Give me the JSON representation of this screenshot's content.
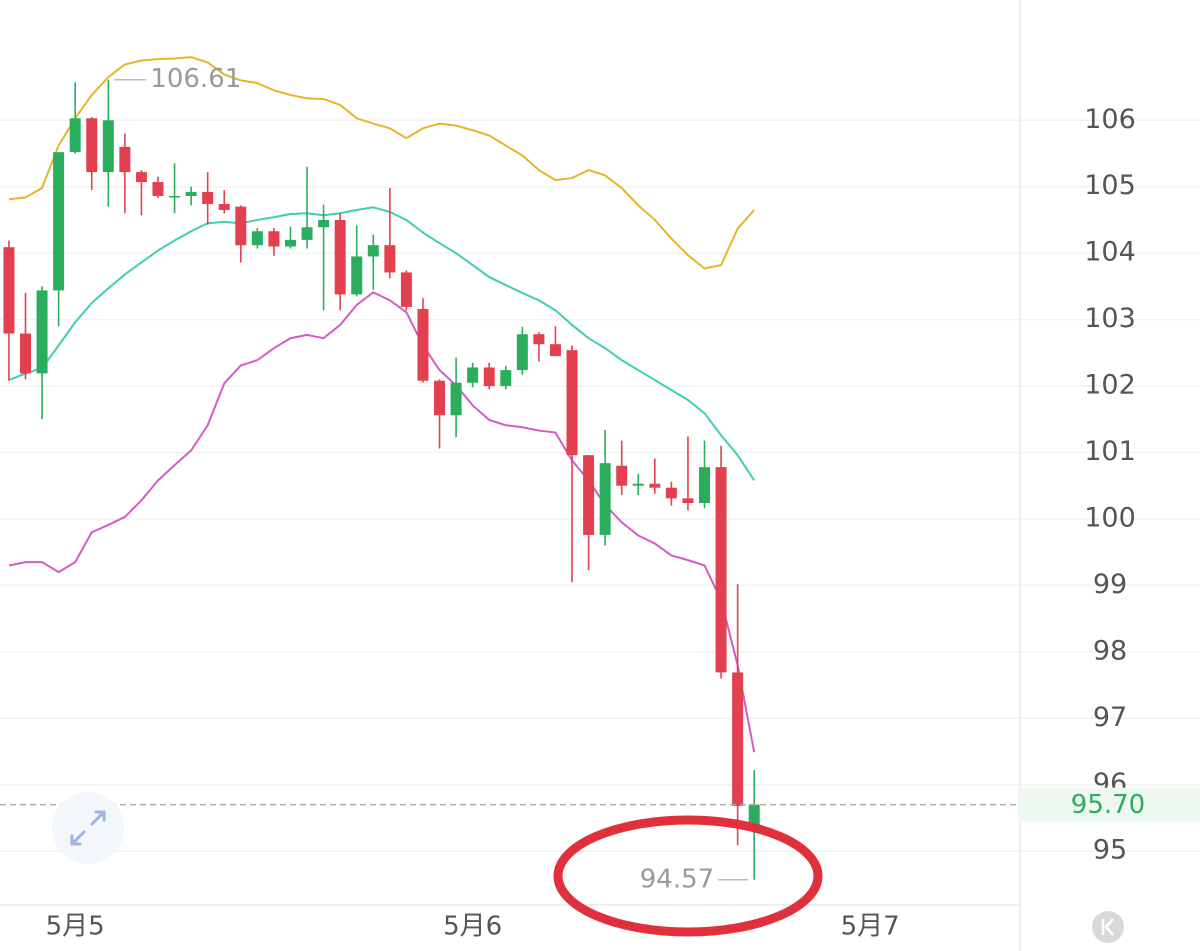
{
  "chart_data": {
    "type": "candlestick",
    "x": [
      0,
      1,
      2,
      3,
      4,
      5,
      6,
      7,
      8,
      9,
      10,
      11,
      12,
      13,
      14,
      15,
      16,
      17,
      18,
      19,
      20,
      21,
      22,
      23,
      24,
      25,
      26,
      27,
      28,
      29,
      30,
      31,
      32,
      33,
      34,
      35,
      36,
      37,
      38,
      39,
      40,
      41,
      42,
      43,
      44,
      45
    ],
    "open": [
      104.09,
      102.79,
      102.19,
      103.44,
      105.52,
      106.03,
      105.22,
      105.6,
      105.22,
      105.07,
      104.86,
      104.86,
      104.92,
      104.74,
      104.7,
      104.12,
      104.33,
      104.1,
      104.2,
      104.39,
      104.5,
      103.38,
      103.95,
      104.12,
      103.71,
      103.16,
      102.08,
      101.56,
      102.05,
      102.28,
      102.0,
      102.24,
      102.78,
      102.63,
      102.54,
      100.96,
      99.76,
      100.8,
      100.5,
      100.53,
      100.47,
      100.31,
      100.24,
      100.78,
      97.69,
      95.38
    ],
    "high": [
      104.19,
      103.4,
      103.5,
      105.5,
      106.57,
      106.05,
      106.61,
      105.8,
      105.25,
      105.15,
      105.35,
      105.0,
      105.22,
      104.95,
      104.72,
      104.38,
      104.38,
      104.4,
      105.3,
      104.73,
      104.6,
      104.42,
      104.28,
      104.98,
      103.74,
      103.32,
      102.1,
      102.43,
      102.35,
      102.35,
      102.3,
      102.89,
      102.81,
      102.9,
      102.61,
      100.96,
      101.34,
      101.18,
      100.68,
      100.91,
      100.56,
      101.24,
      101.18,
      101.1,
      99.02,
      96.22
    ],
    "low": [
      102.08,
      102.1,
      101.5,
      102.9,
      105.5,
      104.95,
      104.7,
      104.6,
      104.57,
      104.83,
      104.6,
      104.72,
      104.43,
      104.6,
      103.86,
      104.07,
      103.96,
      104.07,
      104.07,
      103.14,
      103.14,
      103.35,
      103.45,
      103.62,
      103.14,
      102.05,
      101.06,
      101.23,
      101.98,
      101.95,
      101.95,
      102.17,
      102.37,
      102.45,
      99.05,
      99.23,
      99.6,
      100.36,
      100.36,
      100.38,
      100.2,
      100.13,
      100.16,
      97.6,
      95.09,
      94.57
    ],
    "close": [
      102.79,
      102.19,
      103.44,
      105.52,
      106.03,
      105.22,
      106.0,
      105.22,
      105.07,
      104.86,
      104.86,
      104.92,
      104.74,
      104.65,
      104.12,
      104.33,
      104.1,
      104.2,
      104.39,
      104.5,
      103.38,
      103.95,
      104.12,
      103.71,
      103.19,
      102.08,
      101.56,
      102.05,
      102.28,
      102.0,
      102.24,
      102.78,
      102.63,
      102.45,
      100.96,
      99.76,
      100.84,
      100.5,
      100.53,
      100.47,
      100.31,
      100.24,
      100.78,
      97.69,
      95.68,
      95.7
    ],
    "up_color": "#2aae5e",
    "down_color": "#e3404f",
    "lines": [
      {
        "color": "#e6b52e",
        "values": [
          104.81,
          104.84,
          104.98,
          105.62,
          106.03,
          106.38,
          106.65,
          106.84,
          106.9,
          106.92,
          106.93,
          106.95,
          106.87,
          106.69,
          106.6,
          106.56,
          106.45,
          106.38,
          106.33,
          106.32,
          106.23,
          106.03,
          105.95,
          105.88,
          105.73,
          105.88,
          105.95,
          105.92,
          105.85,
          105.77,
          105.62,
          105.47,
          105.25,
          105.1,
          105.13,
          105.25,
          105.17,
          104.98,
          104.72,
          104.5,
          104.22,
          103.97,
          103.77,
          103.82,
          104.37,
          104.65
        ]
      },
      {
        "color": "#3fcfb0",
        "values": [
          102.09,
          102.19,
          102.27,
          102.61,
          102.96,
          103.25,
          103.47,
          103.68,
          103.86,
          104.04,
          104.19,
          104.33,
          104.45,
          104.47,
          104.45,
          104.5,
          104.54,
          104.59,
          104.6,
          104.57,
          104.6,
          104.65,
          104.69,
          104.62,
          104.5,
          104.31,
          104.15,
          104.0,
          103.82,
          103.64,
          103.52,
          103.4,
          103.29,
          103.14,
          102.92,
          102.72,
          102.57,
          102.39,
          102.24,
          102.09,
          101.94,
          101.79,
          101.59,
          101.26,
          100.96,
          100.58
        ]
      },
      {
        "color": "#d65ac6",
        "values": [
          99.3,
          99.35,
          99.35,
          99.2,
          99.35,
          99.8,
          99.91,
          100.03,
          100.28,
          100.58,
          100.81,
          101.03,
          101.41,
          102.04,
          102.31,
          102.39,
          102.57,
          102.72,
          102.77,
          102.72,
          102.92,
          103.22,
          103.41,
          103.29,
          103.11,
          102.61,
          102.24,
          102.01,
          101.71,
          101.49,
          101.41,
          101.38,
          101.33,
          101.3,
          100.88,
          100.58,
          100.21,
          99.95,
          99.75,
          99.63,
          99.45,
          99.38,
          99.3,
          98.78,
          97.8,
          96.49
        ]
      }
    ],
    "xlim": [
      -0.54,
      61.05
    ],
    "xticks": [
      {
        "value": 4,
        "label": "5月5"
      },
      {
        "value": 28,
        "label": "5月6"
      },
      {
        "value": 52,
        "label": "5月7"
      }
    ],
    "ylim": [
      94.19,
      107.81
    ],
    "yticks": [
      95,
      96,
      97,
      98,
      99,
      100,
      101,
      102,
      103,
      104,
      105,
      106
    ],
    "grid": true,
    "high_label": {
      "x": 6,
      "value": 106.61
    },
    "low_label": {
      "x": 45,
      "value": 94.57
    },
    "last_price": {
      "value": 95.7,
      "label": "95.70"
    }
  }
}
